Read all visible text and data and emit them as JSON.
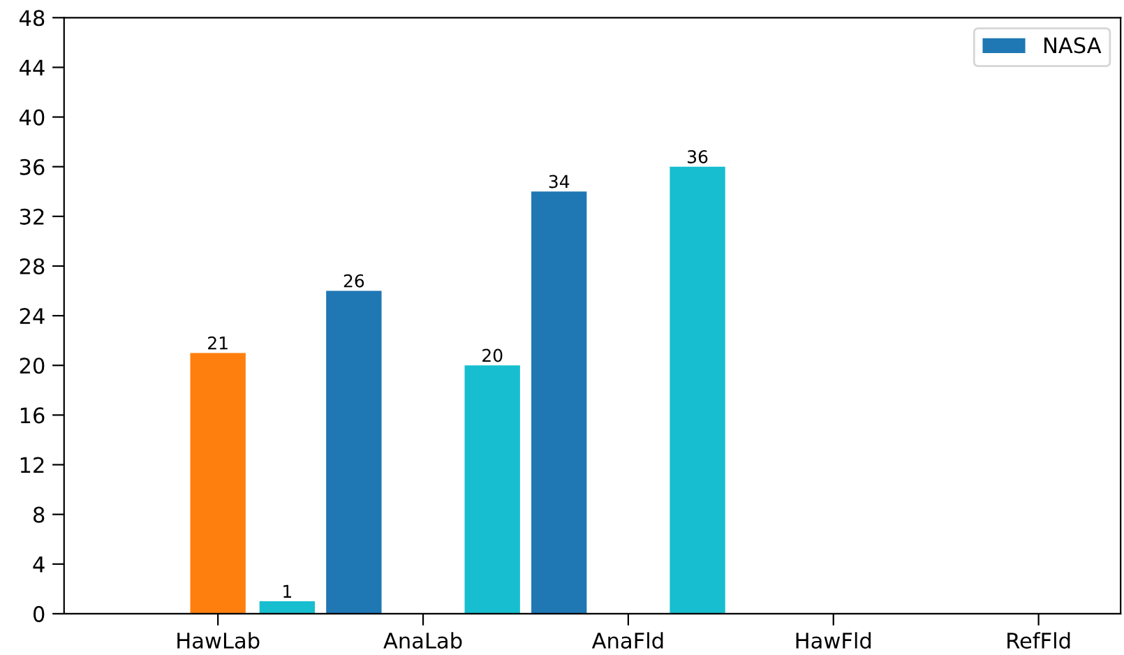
{
  "chart_data": {
    "type": "bar",
    "categories": [
      "HawLab",
      "AnaLab",
      "AnaFld",
      "HawFld",
      "RefFld"
    ],
    "series": [
      {
        "name": "NASA",
        "color": "#1f77b4",
        "values": [
          null,
          26,
          34,
          null,
          null
        ]
      },
      {
        "color": "#ff7f0e",
        "values": [
          21,
          null,
          null,
          null,
          null
        ]
      },
      {
        "color": "#17becf",
        "values": [
          1,
          20,
          36,
          null,
          null
        ]
      }
    ],
    "ylim": [
      0,
      48
    ],
    "yticks": [
      0,
      4,
      8,
      12,
      16,
      20,
      24,
      28,
      32,
      36,
      40,
      44,
      48
    ],
    "data_labels": true,
    "grid": false,
    "legend": "top right"
  }
}
